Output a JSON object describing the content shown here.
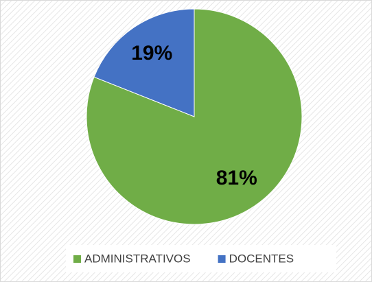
{
  "chart_data": {
    "type": "pie",
    "categories": [
      "ADMINISTRATIVOS",
      "DOCENTES"
    ],
    "values": [
      81,
      19
    ],
    "value_labels": [
      "81%",
      "19%"
    ],
    "colors": [
      "#70ad47",
      "#4472c4"
    ],
    "legend": "bottom"
  }
}
